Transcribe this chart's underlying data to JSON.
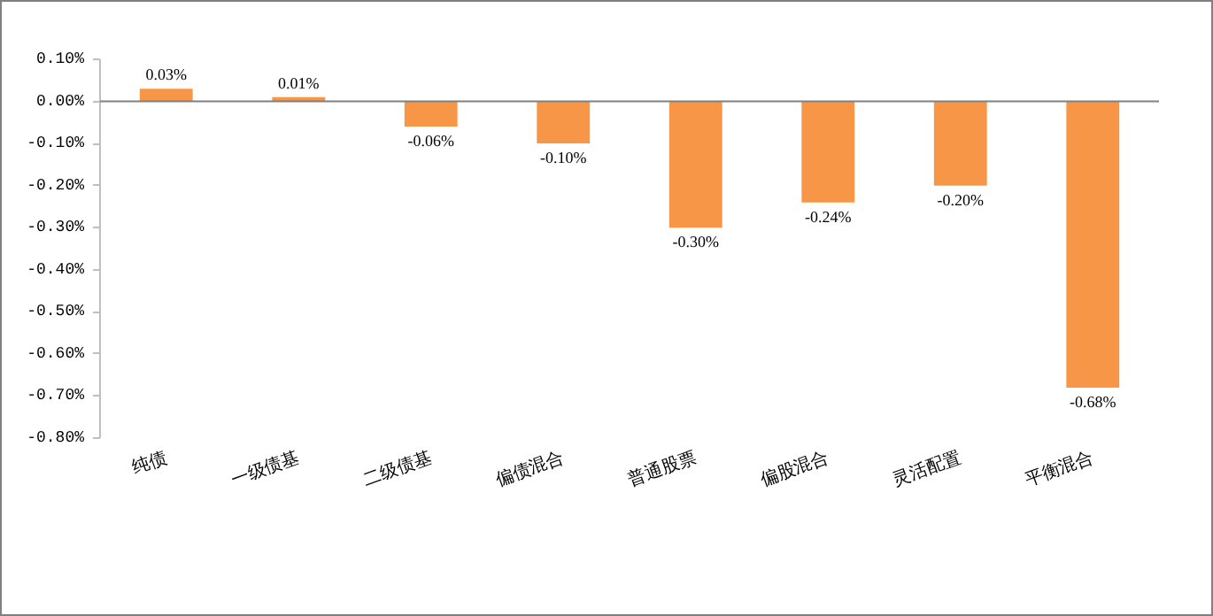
{
  "chart_data": {
    "type": "bar",
    "categories": [
      "纯债",
      "一级债基",
      "二级债基",
      "偏债混合",
      "普通股票",
      "偏股混合",
      "灵活配置",
      "平衡混合"
    ],
    "values": [
      0.03,
      0.01,
      -0.06,
      -0.1,
      -0.3,
      -0.24,
      -0.2,
      -0.68
    ],
    "value_labels": [
      "0.03%",
      "0.01%",
      "-0.06%",
      "-0.10%",
      "-0.30%",
      "-0.24%",
      "-0.20%",
      "-0.68%"
    ],
    "color": "#f79646",
    "ylim": [
      -0.8,
      0.1
    ],
    "yticks": [
      {
        "value": 0.1,
        "label": "0.10%"
      },
      {
        "value": 0.0,
        "label": "0.00%"
      },
      {
        "value": -0.1,
        "label": "-0.10%"
      },
      {
        "value": -0.2,
        "label": "-0.20%"
      },
      {
        "value": -0.3,
        "label": "-0.30%"
      },
      {
        "value": -0.4,
        "label": "-0.40%"
      },
      {
        "value": -0.5,
        "label": "-0.50%"
      },
      {
        "value": -0.6,
        "label": "-0.60%"
      },
      {
        "value": -0.7,
        "label": "-0.70%"
      },
      {
        "value": -0.8,
        "label": "-0.80%"
      }
    ],
    "ref_lines": [
      {
        "axis": "y",
        "value": 0,
        "color": "#808080"
      }
    ]
  }
}
